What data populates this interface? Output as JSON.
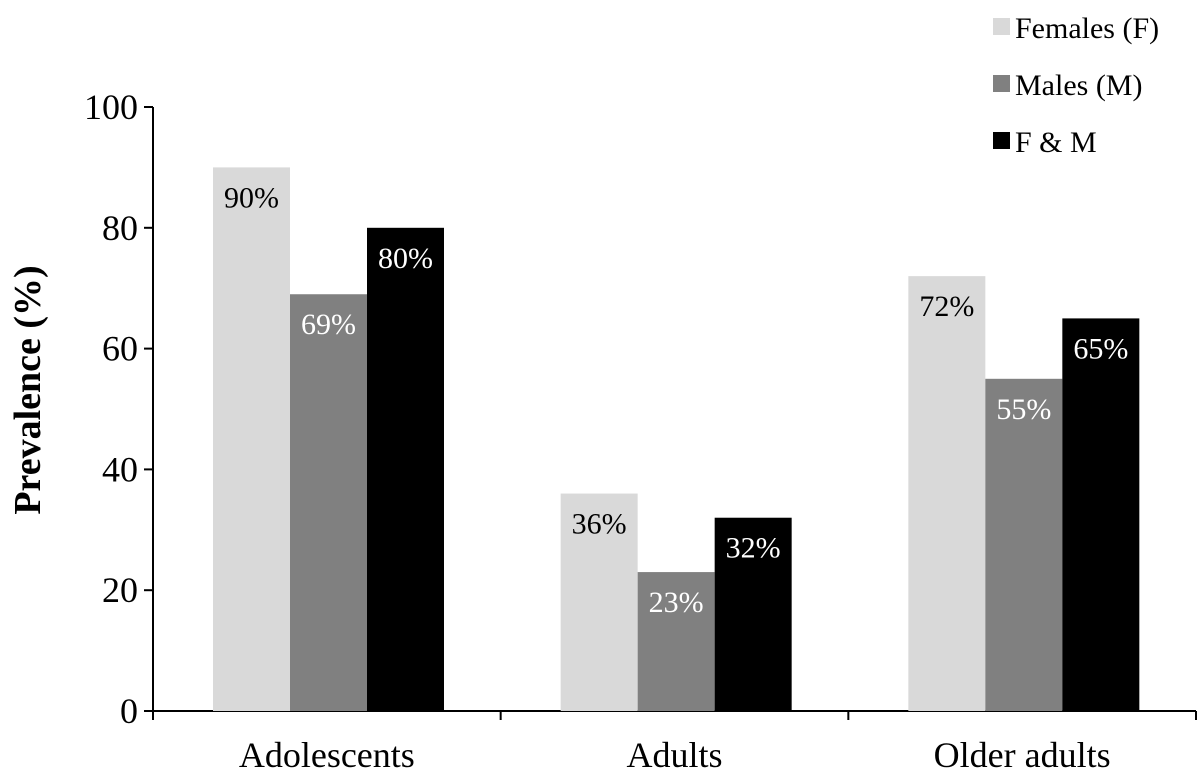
{
  "chart_data": {
    "type": "bar",
    "categories": [
      "Adolescents",
      "Adults",
      "Older adults"
    ],
    "series": [
      {
        "name": "Females (F)",
        "values": [
          90,
          36,
          72
        ],
        "labels": [
          "90%",
          "36%",
          "72%"
        ],
        "color": "#d9d9d9",
        "label_color": "#000000"
      },
      {
        "name": "Males (M)",
        "values": [
          69,
          23,
          55
        ],
        "labels": [
          "69%",
          "23%",
          "55%"
        ],
        "color": "#808080",
        "label_color": "#ffffff"
      },
      {
        "name": "F & M",
        "values": [
          80,
          32,
          65
        ],
        "labels": [
          "80%",
          "32%",
          "65%"
        ],
        "color": "#000000",
        "label_color": "#ffffff"
      }
    ],
    "ylabel": "Prevalence (%)",
    "xlabel": "",
    "ylim": [
      0,
      100
    ],
    "yticks": [
      0,
      20,
      40,
      60,
      80,
      100
    ],
    "grid": false,
    "legend_position": "top-right"
  }
}
